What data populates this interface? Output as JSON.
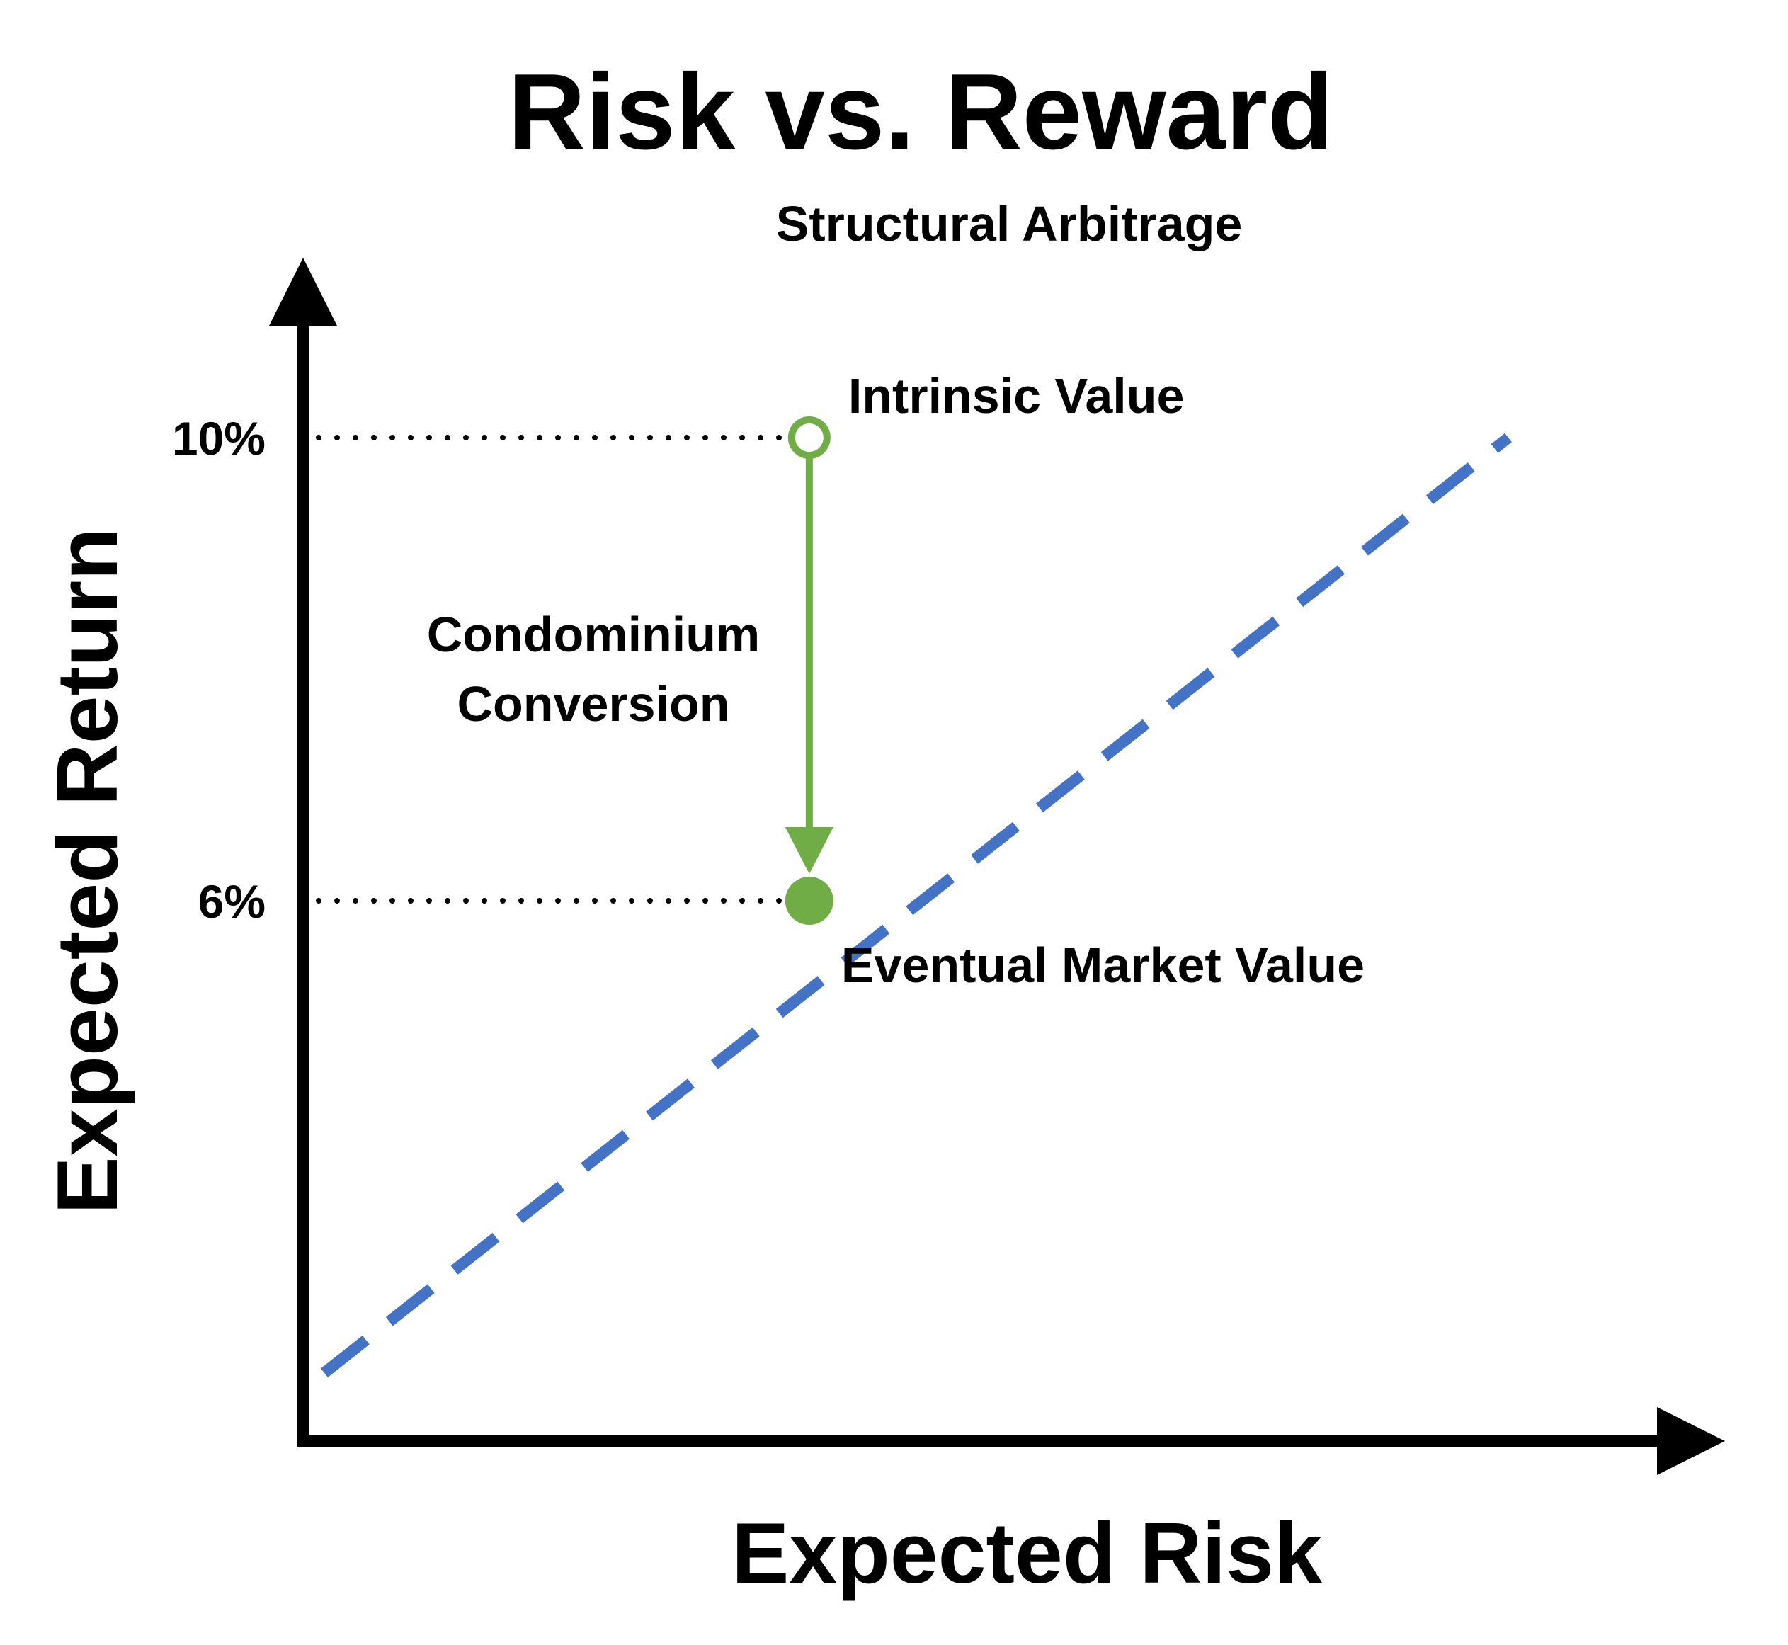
{
  "chart_data": {
    "type": "line",
    "title": "Risk vs. Reward",
    "subtitle": "Structural Arbitrage",
    "xlabel": "Expected Risk",
    "ylabel": "Expected Return",
    "x_tick_labels": [],
    "ylim": [
      0,
      12
    ],
    "y_ticks": [
      {
        "value": 10,
        "label": "10%"
      },
      {
        "value": 6,
        "label": "6%"
      }
    ],
    "series": [
      {
        "style": "dashed",
        "color": "#4472C4",
        "points": [
          {
            "x": 0.0,
            "y": 1.8
          },
          {
            "x": 10.0,
            "y": 10.0
          }
        ]
      }
    ],
    "points": [
      {
        "label": "Intrinsic Value",
        "x": 4.2,
        "y": 10,
        "marker": "hollow-circle",
        "color": "#70AD47"
      },
      {
        "label": "Eventual Market Value",
        "x": 4.2,
        "y": 6,
        "marker": "filled-circle",
        "color": "#70AD47"
      }
    ],
    "annotations": [
      {
        "text_lines": [
          "Condominium",
          "Conversion"
        ],
        "type": "arrow",
        "from_y": 10,
        "to_y": 6,
        "color": "#70AD47"
      }
    ],
    "grid": false,
    "legend": "none"
  }
}
